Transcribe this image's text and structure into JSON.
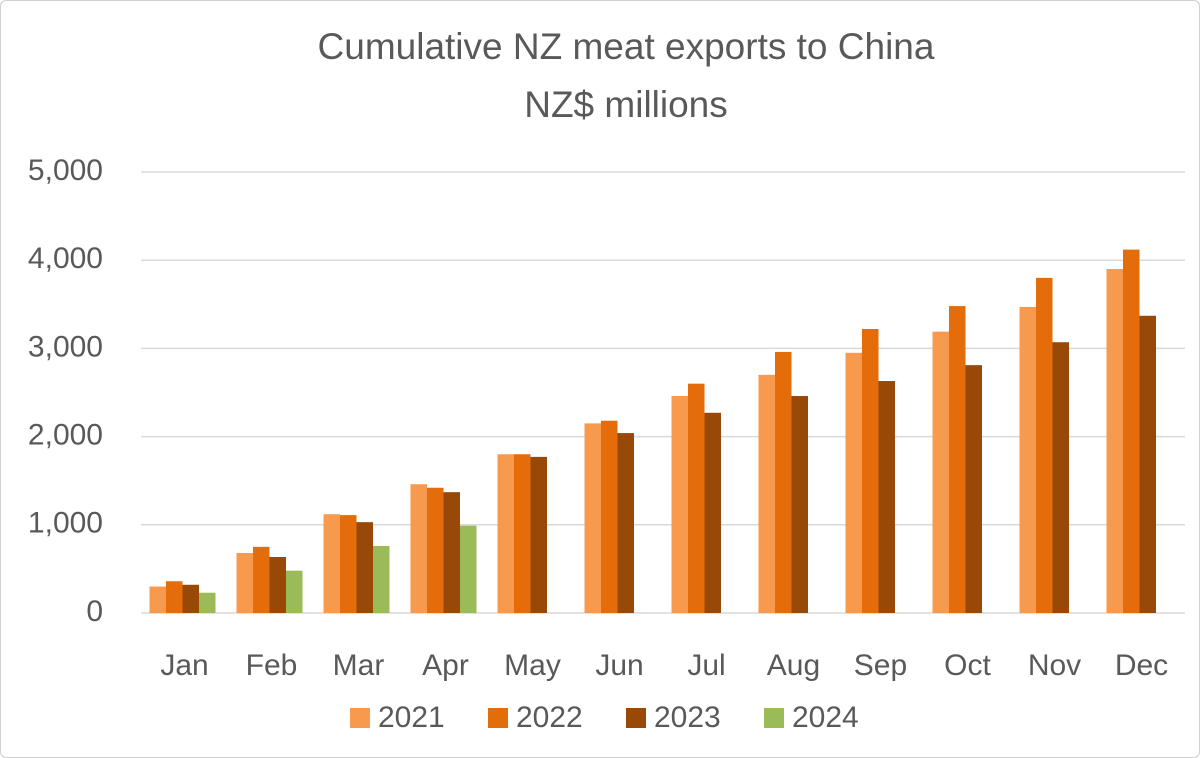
{
  "chart_data": {
    "type": "bar",
    "title": "Cumulative NZ meat exports to China",
    "subtitle": "NZ$ millions",
    "categories": [
      "Jan",
      "Feb",
      "Mar",
      "Apr",
      "May",
      "Jun",
      "Jul",
      "Aug",
      "Sep",
      "Oct",
      "Nov",
      "Dec"
    ],
    "series": [
      {
        "name": "2021",
        "color": "#f79a4e",
        "values": [
          300,
          680,
          1120,
          1460,
          1800,
          2150,
          2460,
          2700,
          2950,
          3190,
          3470,
          3900
        ]
      },
      {
        "name": "2022",
        "color": "#e46c0a",
        "values": [
          360,
          750,
          1110,
          1420,
          1800,
          2180,
          2600,
          2960,
          3220,
          3480,
          3800,
          4120
        ]
      },
      {
        "name": "2023",
        "color": "#984807",
        "values": [
          320,
          635,
          1030,
          1370,
          1770,
          2040,
          2270,
          2460,
          2630,
          2810,
          3070,
          3370
        ]
      },
      {
        "name": "2024",
        "color": "#9bbb59",
        "values": [
          230,
          480,
          760,
          990,
          null,
          null,
          null,
          null,
          null,
          null,
          null,
          null
        ]
      }
    ],
    "ylim": [
      0,
      5000
    ],
    "yticks": [
      0,
      {
        "value": 1000,
        "label": "1,000"
      },
      {
        "value": 2000,
        "label": "2,000"
      },
      {
        "value": 3000,
        "label": "3,000"
      },
      {
        "value": 4000,
        "label": "4,000"
      },
      {
        "value": 5000,
        "label": "5,000"
      }
    ],
    "grid": true,
    "legend": "bottom"
  }
}
